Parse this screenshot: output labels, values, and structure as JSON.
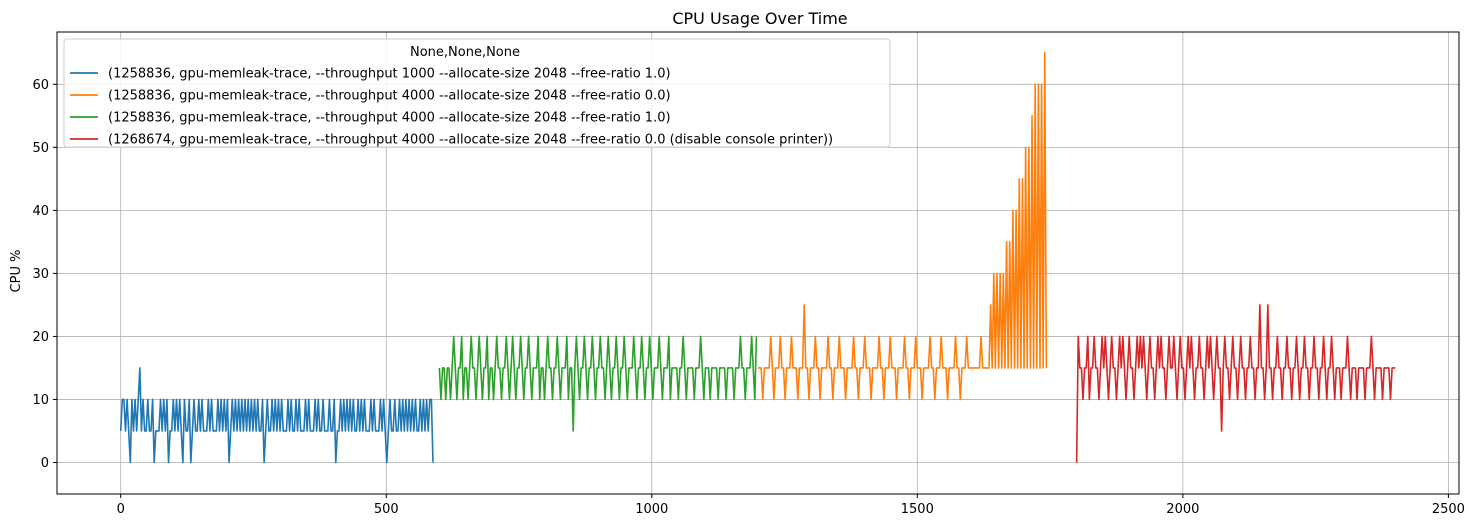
{
  "chart_data": {
    "type": "line",
    "title": "CPU Usage Over Time",
    "xlabel": "",
    "ylabel": "CPU %",
    "xlim": [
      -120,
      2520
    ],
    "ylim": [
      -5,
      68.3
    ],
    "xticks": [
      0,
      500,
      1000,
      1500,
      2000,
      2500
    ],
    "yticks": [
      0,
      10,
      20,
      30,
      40,
      50,
      60
    ],
    "grid": true,
    "legend": {
      "title": "None,None,None",
      "location": "top-left"
    },
    "series": [
      {
        "name": "(1258836, gpu-memleak-trace, --throughput 1000 --allocate-size 2048 --free-ratio 1.0)",
        "color": "#1f77b4",
        "x_start": 0,
        "x_step": 3,
        "values": [
          5,
          10,
          10,
          5,
          10,
          5,
          0,
          10,
          5,
          10,
          5,
          10,
          15,
          5,
          10,
          5,
          5,
          10,
          5,
          5,
          10,
          0,
          5,
          5,
          5,
          10,
          5,
          10,
          5,
          10,
          0,
          5,
          5,
          10,
          5,
          10,
          5,
          10,
          5,
          0,
          10,
          5,
          5,
          10,
          0,
          5,
          10,
          5,
          5,
          10,
          5,
          10,
          5,
          5,
          5,
          10,
          5,
          10,
          5,
          5,
          5,
          10,
          5,
          10,
          5,
          10,
          5,
          10,
          0,
          5,
          10,
          5,
          10,
          5,
          10,
          5,
          10,
          5,
          10,
          5,
          10,
          5,
          10,
          5,
          10,
          5,
          10,
          5,
          5,
          10,
          0,
          5,
          10,
          5,
          5,
          10,
          5,
          10,
          5,
          10,
          5,
          10,
          5,
          5,
          5,
          10,
          5,
          10,
          5,
          5,
          10,
          5,
          10,
          5,
          5,
          5,
          10,
          5,
          10,
          5,
          5,
          5,
          10,
          5,
          10,
          5,
          5,
          10,
          5,
          5,
          5,
          10,
          5,
          5,
          10,
          0,
          5,
          5,
          10,
          5,
          10,
          5,
          10,
          5,
          10,
          5,
          10,
          5,
          5,
          10,
          5,
          10,
          5,
          10,
          5,
          5,
          5,
          10,
          5,
          10,
          5,
          5,
          5,
          10,
          5,
          10,
          5,
          0,
          5,
          10,
          5,
          5,
          10,
          5,
          5,
          10,
          5,
          10,
          5,
          10,
          5,
          10,
          5,
          10,
          5,
          10,
          5,
          5,
          10,
          5,
          10,
          5,
          10,
          5,
          10,
          10,
          0
        ]
      },
      {
        "name": "(1258836, gpu-memleak-trace, --throughput 4000 --allocate-size 2048 --free-ratio 0.0)",
        "color": "#ff7f0e",
        "x_start": 1200,
        "x_step": 3,
        "values": [
          15,
          15,
          15,
          10,
          15,
          15,
          15,
          15,
          20,
          15,
          10,
          15,
          15,
          15,
          20,
          15,
          15,
          10,
          15,
          15,
          15,
          20,
          15,
          15,
          15,
          10,
          15,
          15,
          15,
          25,
          15,
          15,
          10,
          15,
          15,
          15,
          20,
          15,
          15,
          10,
          15,
          15,
          15,
          15,
          20,
          15,
          15,
          10,
          15,
          15,
          15,
          20,
          15,
          15,
          15,
          10,
          15,
          15,
          15,
          15,
          20,
          15,
          15,
          10,
          15,
          15,
          15,
          20,
          15,
          15,
          15,
          10,
          15,
          15,
          15,
          15,
          20,
          15,
          15,
          10,
          15,
          15,
          15,
          20,
          15,
          15,
          15,
          10,
          15,
          15,
          15,
          15,
          20,
          15,
          15,
          10,
          15,
          15,
          15,
          20,
          15,
          15,
          15,
          10,
          15,
          15,
          15,
          15,
          20,
          15,
          15,
          10,
          15,
          15,
          15,
          20,
          15,
          15,
          15,
          10,
          15,
          15,
          15,
          15,
          20,
          15,
          15,
          10,
          15,
          15,
          15,
          20,
          15,
          15,
          15,
          15,
          15,
          15,
          15,
          15,
          20,
          15,
          15,
          15,
          15,
          15,
          25,
          15,
          30,
          15,
          30,
          15,
          30,
          15,
          30,
          15,
          35,
          15,
          35,
          15,
          40,
          15,
          40,
          15,
          45,
          15,
          45,
          15,
          50,
          15,
          50,
          15,
          55,
          15,
          60,
          15,
          60,
          15,
          60,
          15,
          65,
          15
        ]
      },
      {
        "name": "(1258836, gpu-memleak-trace, --throughput 4000 --allocate-size 2048 --free-ratio 1.0)",
        "color": "#2ca02c",
        "x_start": 600,
        "x_step": 3,
        "values": [
          15,
          10,
          15,
          15,
          10,
          15,
          15,
          10,
          15,
          20,
          15,
          10,
          15,
          15,
          20,
          10,
          15,
          15,
          10,
          15,
          20,
          15,
          15,
          10,
          15,
          20,
          15,
          10,
          15,
          15,
          20,
          10,
          15,
          15,
          10,
          15,
          20,
          15,
          15,
          10,
          15,
          15,
          20,
          15,
          10,
          15,
          20,
          15,
          10,
          15,
          15,
          20,
          15,
          10,
          15,
          15,
          20,
          15,
          10,
          15,
          15,
          15,
          20,
          10,
          15,
          15,
          10,
          15,
          20,
          15,
          15,
          10,
          15,
          15,
          20,
          15,
          10,
          15,
          15,
          15,
          20,
          10,
          15,
          15,
          5,
          15,
          20,
          15,
          10,
          15,
          15,
          20,
          15,
          10,
          15,
          15,
          20,
          15,
          10,
          15,
          15,
          20,
          15,
          15,
          10,
          15,
          20,
          15,
          10,
          15,
          15,
          20,
          15,
          10,
          15,
          15,
          20,
          15,
          10,
          15,
          15,
          15,
          20,
          15,
          10,
          15,
          15,
          20,
          15,
          10,
          15,
          15,
          20,
          15,
          10,
          15,
          15,
          15,
          20,
          15,
          10,
          15,
          15,
          15,
          20,
          10,
          15,
          15,
          15,
          15,
          10,
          15,
          15,
          20,
          15,
          10,
          15,
          15,
          15,
          15,
          10,
          15,
          15,
          15,
          20,
          15,
          10,
          15,
          15,
          15,
          10,
          15,
          15,
          15,
          15,
          10,
          15,
          15,
          15,
          15,
          10,
          15,
          15,
          15,
          15,
          10,
          15,
          15,
          15,
          20,
          15,
          15,
          10,
          15,
          15,
          15,
          20,
          15,
          10,
          20
        ]
      },
      {
        "name": "(1268674, gpu-memleak-trace, --throughput 4000 --allocate-size 2048 --free-ratio 0.0 (disable console printer))",
        "color": "#d62728",
        "x_start": 1800,
        "x_step": 3,
        "values": [
          0,
          20,
          15,
          15,
          10,
          15,
          15,
          20,
          10,
          15,
          15,
          20,
          15,
          15,
          10,
          15,
          20,
          15,
          20,
          15,
          10,
          15,
          20,
          15,
          15,
          10,
          15,
          20,
          15,
          20,
          15,
          10,
          15,
          20,
          15,
          15,
          10,
          15,
          20,
          15,
          20,
          15,
          20,
          15,
          10,
          15,
          20,
          15,
          15,
          10,
          15,
          20,
          15,
          20,
          15,
          15,
          10,
          15,
          20,
          15,
          15,
          20,
          15,
          10,
          15,
          20,
          15,
          15,
          10,
          15,
          20,
          15,
          20,
          15,
          10,
          15,
          15,
          20,
          15,
          15,
          10,
          15,
          20,
          15,
          20,
          15,
          10,
          15,
          20,
          15,
          15,
          5,
          15,
          20,
          15,
          15,
          10,
          15,
          20,
          15,
          15,
          10,
          15,
          20,
          15,
          15,
          10,
          15,
          15,
          20,
          15,
          15,
          10,
          15,
          15,
          25,
          15,
          15,
          10,
          15,
          25,
          15,
          15,
          10,
          15,
          15,
          20,
          15,
          15,
          10,
          15,
          15,
          20,
          15,
          15,
          10,
          15,
          15,
          20,
          15,
          10,
          15,
          15,
          20,
          15,
          15,
          10,
          15,
          15,
          20,
          15,
          15,
          10,
          15,
          15,
          20,
          15,
          10,
          15,
          15,
          20,
          15,
          10,
          15,
          15,
          15,
          10,
          15,
          15,
          15,
          20,
          15,
          10,
          15,
          15,
          15,
          10,
          15,
          15,
          15,
          15,
          10,
          15,
          15,
          15,
          20,
          15,
          10,
          15,
          15,
          15,
          15,
          10,
          15,
          15,
          15,
          15,
          10,
          15,
          15,
          15
        ]
      }
    ]
  }
}
